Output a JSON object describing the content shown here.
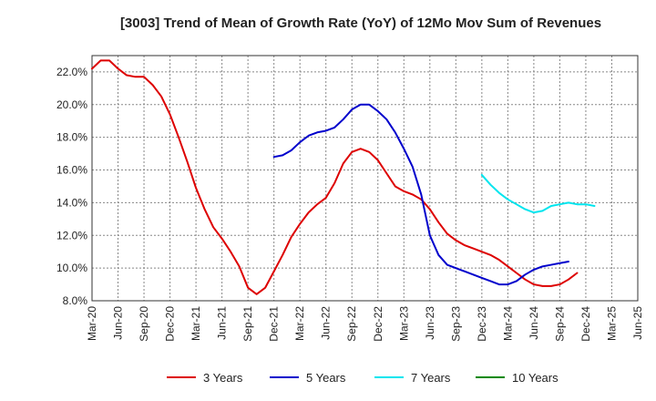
{
  "chart_data": {
    "type": "line",
    "title": "[3003]  Trend of Mean of Growth Rate (YoY) of 12Mo Mov Sum of Revenues",
    "xlabel": "",
    "ylabel": "",
    "ylim": [
      8.0,
      23.0
    ],
    "yticks": [
      8.0,
      10.0,
      12.0,
      14.0,
      16.0,
      18.0,
      20.0,
      22.0
    ],
    "ytick_labels": [
      "8.0%",
      "10.0%",
      "12.0%",
      "14.0%",
      "16.0%",
      "18.0%",
      "20.0%",
      "22.0%"
    ],
    "x_start": "Mar-20",
    "x_count": 64,
    "x_tick_labels": [
      "Mar-20",
      "Jun-20",
      "Sep-20",
      "Dec-20",
      "Mar-21",
      "Jun-21",
      "Sep-21",
      "Dec-21",
      "Mar-22",
      "Jun-22",
      "Sep-22",
      "Dec-22",
      "Mar-23",
      "Jun-23",
      "Sep-23",
      "Dec-23",
      "Mar-24",
      "Jun-24",
      "Sep-24",
      "Dec-24",
      "Mar-25",
      "Jun-25"
    ],
    "grid": true,
    "legend_position": "bottom",
    "series": [
      {
        "name": "3 Years",
        "color": "#dd0000",
        "start_index": 0,
        "values": [
          22.2,
          22.7,
          22.7,
          22.2,
          21.8,
          21.7,
          21.7,
          21.2,
          20.5,
          19.4,
          18.0,
          16.5,
          14.9,
          13.6,
          12.5,
          11.8,
          11.0,
          10.1,
          8.8,
          8.4,
          8.8,
          9.8,
          10.8,
          11.9,
          12.7,
          13.4,
          13.9,
          14.3,
          15.2,
          16.4,
          17.1,
          17.3,
          17.1,
          16.6,
          15.8,
          15.0,
          14.7,
          14.5,
          14.2,
          13.6,
          12.8,
          12.1,
          11.7,
          11.4,
          11.2,
          11.0,
          10.8,
          10.5,
          10.1,
          9.7,
          9.3,
          9.0,
          8.9,
          8.9,
          9.0,
          9.3,
          9.7
        ]
      },
      {
        "name": "5 Years",
        "color": "#0000cc",
        "start_index": 21,
        "values": [
          16.8,
          16.9,
          17.2,
          17.7,
          18.1,
          18.3,
          18.4,
          18.6,
          19.1,
          19.7,
          20.0,
          20.0,
          19.6,
          19.1,
          18.3,
          17.3,
          16.2,
          14.5,
          12.0,
          10.8,
          10.2,
          10.0,
          9.8,
          9.6,
          9.4,
          9.2,
          9.0,
          9.0,
          9.2,
          9.6,
          9.9,
          10.1,
          10.2,
          10.3,
          10.4
        ]
      },
      {
        "name": "7 Years",
        "color": "#00e5ee",
        "start_index": 45,
        "values": [
          15.7,
          15.1,
          14.6,
          14.2,
          13.9,
          13.6,
          13.4,
          13.5,
          13.8,
          13.9,
          14.0,
          13.9,
          13.9,
          13.8
        ]
      },
      {
        "name": "10 Years",
        "color": "#008800",
        "start_index": 0,
        "values": []
      }
    ]
  }
}
